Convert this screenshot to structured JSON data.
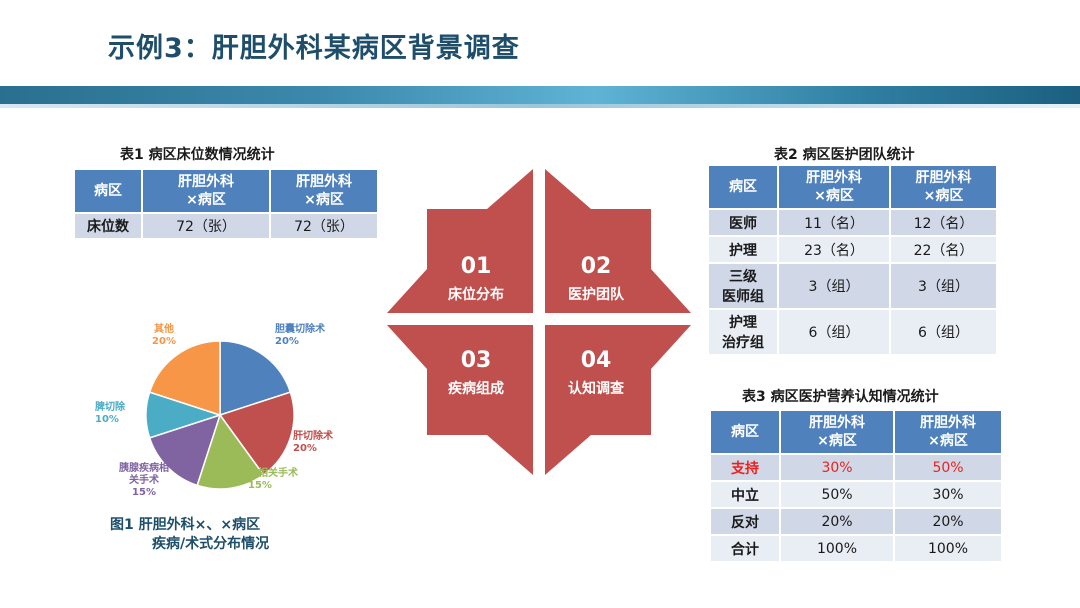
{
  "slide": {
    "title": "示例3：肝胆外科某病区背景调查"
  },
  "table1": {
    "caption": "表1   病区床位数情况统计",
    "headers": [
      "病区",
      "肝胆外科\n×病区",
      "肝胆外科\n×病区"
    ],
    "rows": [
      [
        "床位数",
        "72（张）",
        "72（张）"
      ]
    ]
  },
  "table2": {
    "caption": "表2   病区医护团队统计",
    "headers": [
      "病区",
      "肝胆外科\n×病区",
      "肝胆外科\n×病区"
    ],
    "rows": [
      [
        "医师",
        "11（名）",
        "12（名）"
      ],
      [
        "护理",
        "23（名）",
        "22（名）"
      ],
      [
        "三级\n医师组",
        "3（组）",
        "3（组）"
      ],
      [
        "护理\n治疗组",
        "6（组）",
        "6（组）"
      ]
    ]
  },
  "table3": {
    "caption": "表3   病区医护营养认知情况统计",
    "headers": [
      "病区",
      "肝胆外科\n×病区",
      "肝胆外科\n×病区"
    ],
    "rows": [
      [
        "支持",
        "30%",
        "50%"
      ],
      [
        "中立",
        "50%",
        "30%"
      ],
      [
        "反对",
        "20%",
        "20%"
      ],
      [
        "合计",
        "100%",
        "100%"
      ]
    ],
    "highlight_color": "#e8231f"
  },
  "quadrants": [
    {
      "num": "01",
      "label": "床位分布"
    },
    {
      "num": "02",
      "label": "医护团队"
    },
    {
      "num": "03",
      "label": "疾病组成"
    },
    {
      "num": "04",
      "label": "认知调查"
    }
  ],
  "quadrant_color": "#c0504d",
  "figure_caption": [
    "图1   肝胆外科×、×病区",
    "疾病/术式分布情况"
  ],
  "chart_data": {
    "type": "pie",
    "title": "",
    "slices": [
      {
        "label": "胆囊切除术",
        "value": 20,
        "display": "20%",
        "color": "#4f81bd"
      },
      {
        "label": "肝切除术",
        "value": 20,
        "display": "20%",
        "color": "#c0504d"
      },
      {
        "label": "胃相关手术",
        "value": 15,
        "display": "15%",
        "color": "#9bbb59"
      },
      {
        "label": "胰腺疾病相\n关手术",
        "value": 15,
        "display": "15%",
        "color": "#8064a2"
      },
      {
        "label": "脾切除",
        "value": 10,
        "display": "10%",
        "color": "#4bacc6"
      },
      {
        "label": "其他",
        "value": 20,
        "display": "20%",
        "color": "#f79646"
      }
    ]
  }
}
